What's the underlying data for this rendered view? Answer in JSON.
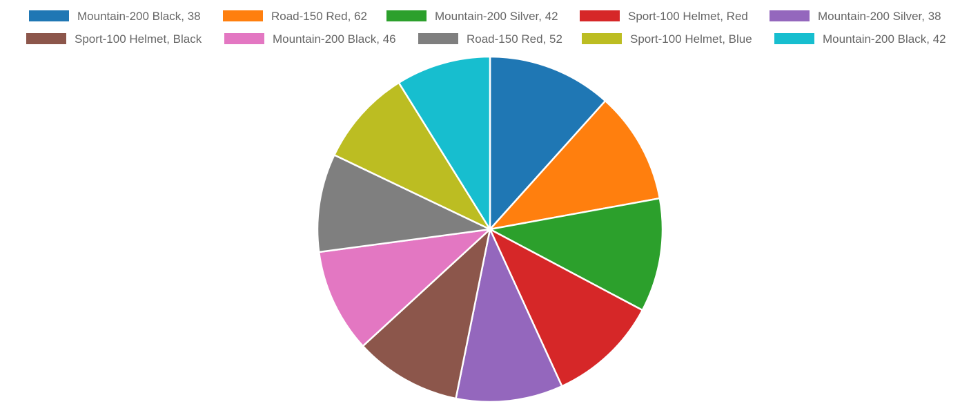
{
  "chart_data": {
    "type": "pie",
    "title": "",
    "legend_position": "top",
    "start_angle_deg": 0,
    "direction": "clockwise",
    "slices": [
      {
        "label": "Mountain-200 Black, 38",
        "value": 38.92,
        "color": "#1f77b4"
      },
      {
        "label": "Road-150 Red, 62",
        "value": 35.0,
        "color": "#ff7f0e"
      },
      {
        "label": "Mountain-200 Silver, 42",
        "value": 35.53,
        "color": "#2ca02c"
      },
      {
        "label": "Sport-100 Helmet, Red",
        "value": 34.71,
        "color": "#d62728"
      },
      {
        "label": "Mountain-200 Silver, 38",
        "value": 33.47,
        "color": "#9467bd"
      },
      {
        "label": "Sport-100 Helmet, Black",
        "value": 33.43,
        "color": "#8c564b"
      },
      {
        "label": "Mountain-200 Black, 46",
        "value": 32.46,
        "color": "#e377c2"
      },
      {
        "label": "Road-150 Red, 52",
        "value": 30.69,
        "color": "#7f7f7f"
      },
      {
        "label": "Sport-100 Helmet, Blue",
        "value": 30.25,
        "color": "#bcbd22"
      },
      {
        "label": "Mountain-200 Black, 42",
        "value": 29.61,
        "color": "#17becf"
      }
    ]
  }
}
